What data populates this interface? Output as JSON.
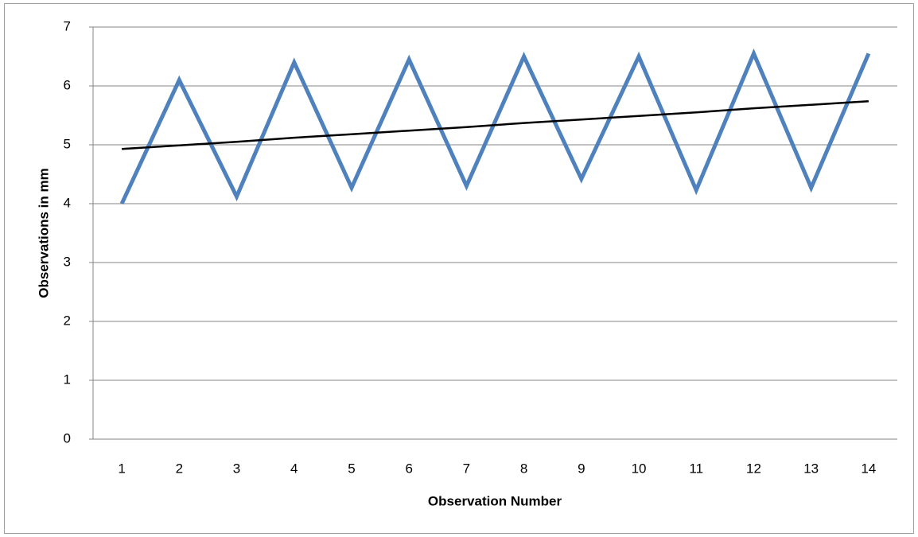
{
  "chart_data": {
    "type": "line",
    "x_label": "Observation Number",
    "y_label": "Observations in mm",
    "categories": [
      "1",
      "2",
      "3",
      "4",
      "5",
      "6",
      "7",
      "8",
      "9",
      "10",
      "11",
      "12",
      "13",
      "14"
    ],
    "series": [
      {
        "color": "#4f81bd",
        "values": [
          4.0,
          6.1,
          4.12,
          6.4,
          4.27,
          6.45,
          4.3,
          6.5,
          4.42,
          6.5,
          4.23,
          6.55,
          4.27,
          6.55
        ]
      },
      {
        "color": "#000000",
        "values": [
          4.93,
          4.99,
          5.05,
          5.12,
          5.18,
          5.24,
          5.3,
          5.37,
          5.43,
          5.49,
          5.55,
          5.62,
          5.68,
          5.74
        ]
      }
    ],
    "ylim": [
      0,
      7
    ],
    "yticks": [
      0,
      1,
      2,
      3,
      4,
      5,
      6,
      7
    ],
    "grid": true
  }
}
